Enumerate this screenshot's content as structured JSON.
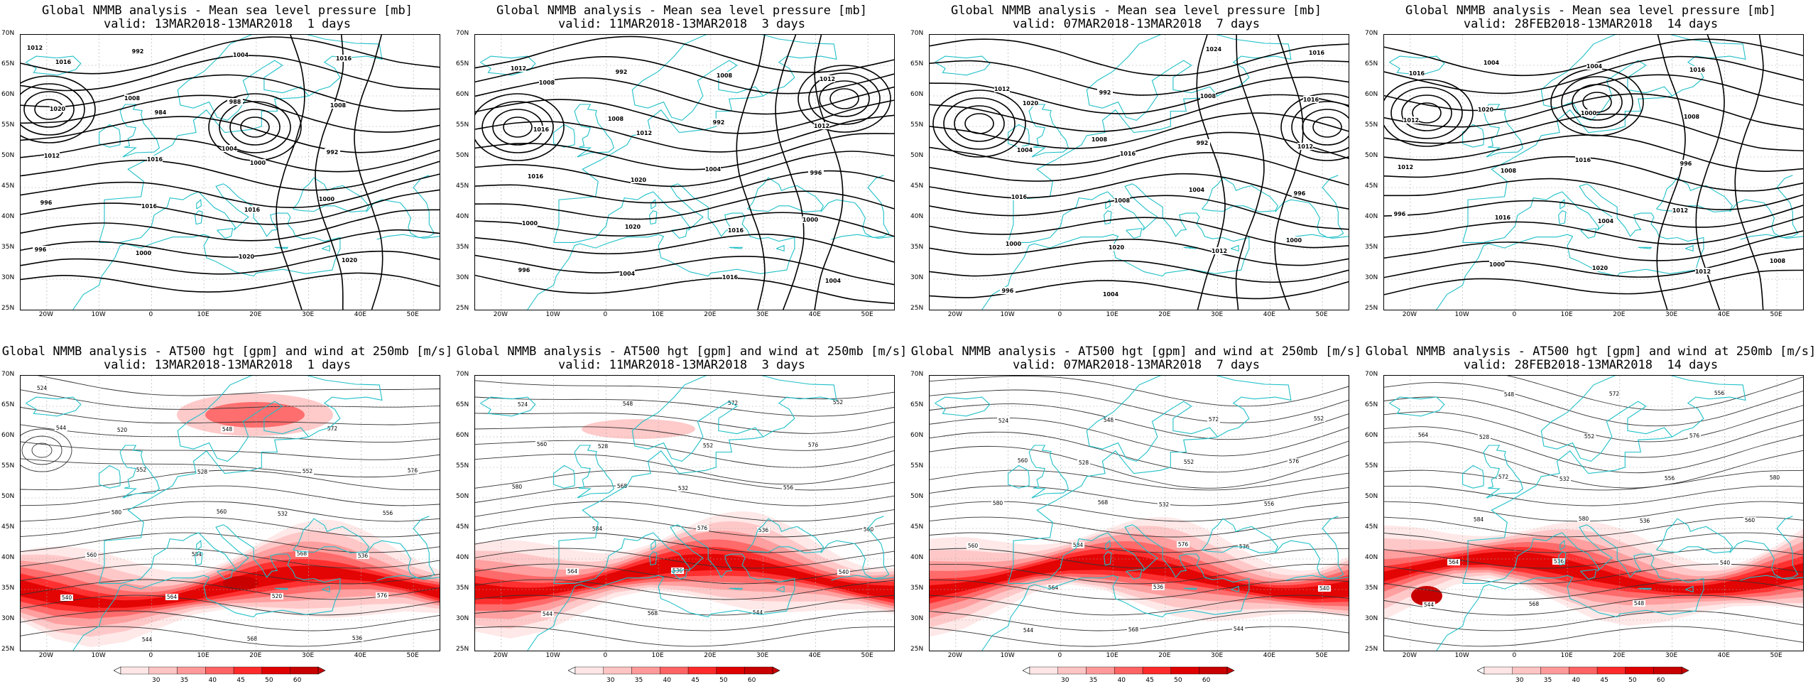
{
  "panels": [
    {
      "title": "Global NMMB analysis - Mean sea level pressure [mb]",
      "valid": "valid: 13MAR2018-13MAR2018  1 days",
      "kind": "mslp",
      "contour_labels": [
        "1012",
        "1008",
        "1004",
        "1000",
        "996",
        "992",
        "988",
        "992",
        "996",
        "1000",
        "1004",
        "1008",
        "1012",
        "1016",
        "1020",
        "1016",
        "1020",
        "1016",
        "1016",
        "1020",
        "1016",
        "984",
        "1000"
      ]
    },
    {
      "title": "Global NMMB analysis - Mean sea level pressure [mb]",
      "valid": "valid: 11MAR2018-13MAR2018  3 days",
      "kind": "mslp",
      "contour_labels": [
        "1012",
        "1008",
        "1004",
        "1000",
        "996",
        "992",
        "992",
        "996",
        "1000",
        "1004",
        "1008",
        "1012",
        "1016",
        "1020",
        "1016",
        "1012",
        "1016",
        "1020",
        "1016",
        "1004",
        "1008",
        "1012"
      ]
    },
    {
      "title": "Global NMMB analysis - Mean sea level pressure [mb]",
      "valid": "valid: 07MAR2018-13MAR2018  7 days",
      "kind": "mslp",
      "contour_labels": [
        "1012",
        "1008",
        "1004",
        "1000",
        "996",
        "992",
        "992",
        "996",
        "1000",
        "1004",
        "1008",
        "1012",
        "1016",
        "1020",
        "1024",
        "1016",
        "1004",
        "1008",
        "1012",
        "1016",
        "1020",
        "1016"
      ]
    },
    {
      "title": "Global NMMB analysis - Mean sea level pressure [mb]",
      "valid": "valid: 28FEB2018-13MAR2018  14 days",
      "kind": "mslp",
      "contour_labels": [
        "1020",
        "1016",
        "1012",
        "1008",
        "1004",
        "1000",
        "996",
        "996",
        "1000",
        "1004",
        "1008",
        "1012",
        "1016",
        "1020",
        "1016",
        "1012",
        "1008",
        "1004",
        "1012",
        "1016"
      ]
    },
    {
      "title": "Global NMMB analysis - AT500 hgt [gpm] and wind at 250mb [m/s]",
      "valid": "valid: 13MAR2018-13MAR2018  1 days",
      "kind": "z500",
      "contour_labels": [
        "524",
        "520",
        "528",
        "532",
        "536",
        "540",
        "544",
        "548",
        "552",
        "556",
        "560",
        "564",
        "568",
        "572",
        "576",
        "580",
        "584",
        "520",
        "536",
        "544",
        "552",
        "560",
        "568",
        "576"
      ]
    },
    {
      "title": "Global NMMB analysis - AT500 hgt [gpm] and wind at 250mb [m/s]",
      "valid": "valid: 11MAR2018-13MAR2018  3 days",
      "kind": "z500",
      "contour_labels": [
        "524",
        "528",
        "532",
        "536",
        "540",
        "544",
        "548",
        "552",
        "556",
        "560",
        "564",
        "568",
        "572",
        "576",
        "580",
        "584",
        "536",
        "544",
        "552",
        "560",
        "568",
        "576"
      ]
    },
    {
      "title": "Global NMMB analysis - AT500 hgt [gpm] and wind at 250mb [m/s]",
      "valid": "valid: 07MAR2018-13MAR2018  7 days",
      "kind": "z500",
      "contour_labels": [
        "524",
        "528",
        "532",
        "536",
        "540",
        "544",
        "548",
        "552",
        "556",
        "560",
        "564",
        "568",
        "572",
        "576",
        "580",
        "584",
        "536",
        "544",
        "552",
        "560",
        "568",
        "576"
      ]
    },
    {
      "title": "Global NMMB analysis - AT500 hgt [gpm] and wind at 250mb [m/s]",
      "valid": "valid: 28FEB2018-13MAR2018  14 days",
      "kind": "z500",
      "contour_labels": [
        "528",
        "532",
        "536",
        "540",
        "544",
        "548",
        "552",
        "556",
        "560",
        "564",
        "568",
        "572",
        "576",
        "580",
        "584",
        "536",
        "548",
        "556",
        "564",
        "572",
        "580"
      ]
    }
  ],
  "lat_labels": [
    "70N",
    "65N",
    "60N",
    "55N",
    "50N",
    "45N",
    "40N",
    "35N",
    "30N",
    "25N"
  ],
  "lon_labels": [
    "20W",
    "10W",
    "0",
    "10E",
    "20E",
    "30E",
    "40E",
    "50E"
  ],
  "colorbar": {
    "labels": [
      "30",
      "35",
      "40",
      "45",
      "50",
      "60"
    ],
    "colors": [
      "#ffe6e6",
      "#ffc4c4",
      "#ff9a9a",
      "#ff6464",
      "#ff2a2a",
      "#e00000",
      "#c80000"
    ]
  },
  "colors": {
    "coast": "#20c0c8",
    "contour": "#000000",
    "z_contour": "#333333",
    "grid": "#aaaaaa"
  }
}
